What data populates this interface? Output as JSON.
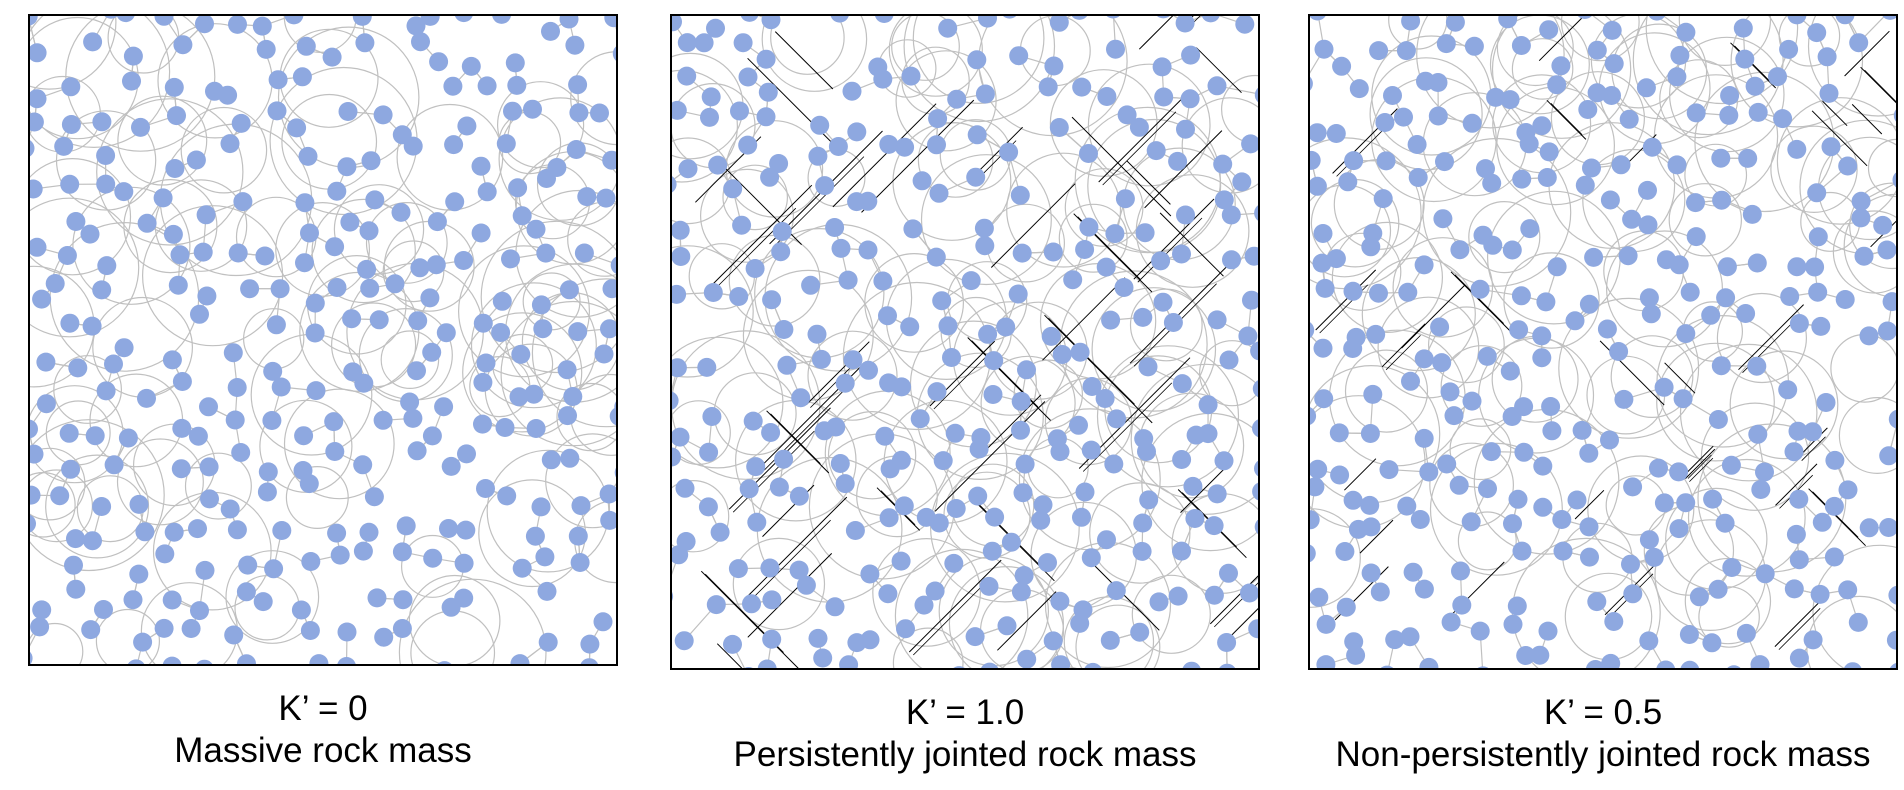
{
  "colors": {
    "particle": "#8ea8e0",
    "bond_circle": "#c0c0c0",
    "joint": "#000000",
    "frame": "#000000"
  },
  "panels": [
    {
      "k_label": "K’ = 0",
      "name": "Massive rock mass"
    },
    {
      "k_label": "K’ = 1.0",
      "name": "Persistently jointed rock mass"
    },
    {
      "k_label": "K’ = 0.5",
      "name": "Non-persistently jointed rock mass"
    }
  ]
}
